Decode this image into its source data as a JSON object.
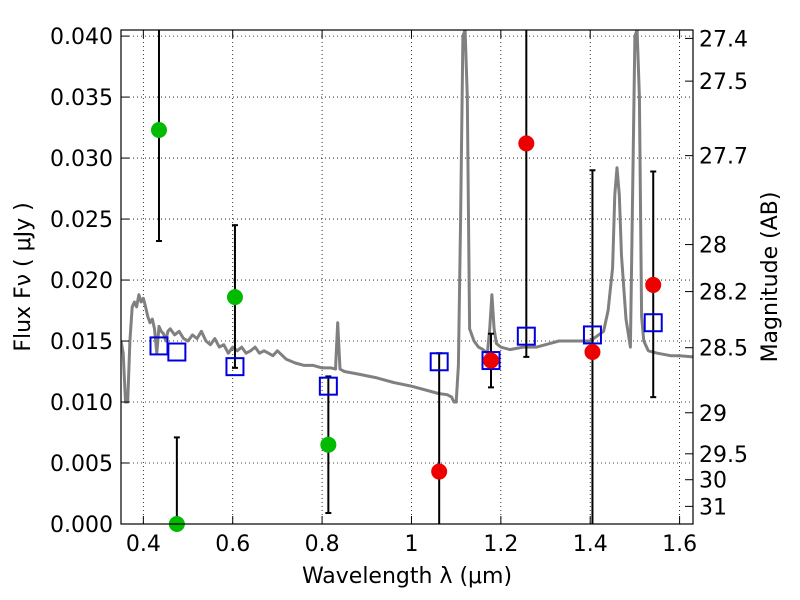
{
  "chart_data": {
    "type": "scatter",
    "xlabel": "Wavelength  λ (μm)",
    "ylabel": "Flux  Fν  ( μJy )",
    "y2label": "Magnitude (AB)",
    "xlim": [
      0.35,
      1.63
    ],
    "ylim": [
      0.0,
      0.0405
    ],
    "grid": true,
    "x_ticks": [
      {
        "value": 0.4,
        "label": "0.4"
      },
      {
        "value": 0.6,
        "label": "0.6"
      },
      {
        "value": 0.8,
        "label": "0.8"
      },
      {
        "value": 1.0,
        "label": "1"
      },
      {
        "value": 1.2,
        "label": "1.2"
      },
      {
        "value": 1.4,
        "label": "1.4"
      },
      {
        "value": 1.6,
        "label": "1.6"
      }
    ],
    "y_ticks": [
      {
        "value": 0.0,
        "label": "0.000"
      },
      {
        "value": 0.005,
        "label": "0.005"
      },
      {
        "value": 0.01,
        "label": "0.010"
      },
      {
        "value": 0.015,
        "label": "0.015"
      },
      {
        "value": 0.02,
        "label": "0.020"
      },
      {
        "value": 0.025,
        "label": "0.025"
      },
      {
        "value": 0.03,
        "label": "0.030"
      },
      {
        "value": 0.035,
        "label": "0.035"
      },
      {
        "value": 0.04,
        "label": "0.040"
      }
    ],
    "y2_ticks": [
      {
        "value": 27.4,
        "label": "27.4"
      },
      {
        "value": 27.5,
        "label": "27.5"
      },
      {
        "value": 27.7,
        "label": "27.7"
      },
      {
        "value": 28.0,
        "label": "28"
      },
      {
        "value": 28.2,
        "label": "28.2"
      },
      {
        "value": 28.5,
        "label": "28.5"
      },
      {
        "value": 29.0,
        "label": "29"
      },
      {
        "value": 29.5,
        "label": "29.5"
      },
      {
        "value": 30.0,
        "label": "30"
      },
      {
        "value": 31.0,
        "label": "31"
      }
    ],
    "observed_optical": {
      "color": "#00bb00",
      "points": [
        {
          "x": 0.435,
          "y": 0.0323,
          "lo": 0.0232,
          "hi": 0.0405
        },
        {
          "x": 0.475,
          "y": 0.0,
          "lo": 0.0,
          "hi": 0.0071
        },
        {
          "x": 0.605,
          "y": 0.0186,
          "lo": 0.0128,
          "hi": 0.0245
        },
        {
          "x": 0.814,
          "y": 0.0065,
          "lo": 0.0009,
          "hi": 0.0121
        }
      ]
    },
    "observed_nir": {
      "color": "#ee0000",
      "points": [
        {
          "x": 1.062,
          "y": 0.0043,
          "lo": 0.0,
          "hi": 0.014
        },
        {
          "x": 1.178,
          "y": 0.0134,
          "lo": 0.0112,
          "hi": 0.0156
        },
        {
          "x": 1.257,
          "y": 0.0312,
          "lo": 0.0137,
          "hi": 0.0405
        },
        {
          "x": 1.405,
          "y": 0.0141,
          "lo": 0.0,
          "hi": 0.029
        },
        {
          "x": 1.541,
          "y": 0.0196,
          "lo": 0.0104,
          "hi": 0.0289
        }
      ]
    },
    "model_photometry": {
      "color": "#0000dd",
      "points": [
        {
          "x": 0.435,
          "y": 0.0146
        },
        {
          "x": 0.475,
          "y": 0.0141
        },
        {
          "x": 0.605,
          "y": 0.0129
        },
        {
          "x": 0.814,
          "y": 0.0113
        },
        {
          "x": 1.062,
          "y": 0.0133
        },
        {
          "x": 1.178,
          "y": 0.0134
        },
        {
          "x": 1.257,
          "y": 0.0154
        },
        {
          "x": 1.405,
          "y": 0.0155
        },
        {
          "x": 1.541,
          "y": 0.0165
        }
      ]
    },
    "model_spectrum": {
      "color": "#808080",
      "x": [
        0.35,
        0.355,
        0.36,
        0.365,
        0.37,
        0.375,
        0.38,
        0.385,
        0.39,
        0.395,
        0.4,
        0.405,
        0.41,
        0.415,
        0.42,
        0.425,
        0.43,
        0.435,
        0.44,
        0.445,
        0.45,
        0.455,
        0.46,
        0.47,
        0.48,
        0.49,
        0.5,
        0.51,
        0.52,
        0.53,
        0.54,
        0.55,
        0.56,
        0.57,
        0.58,
        0.59,
        0.6,
        0.61,
        0.62,
        0.63,
        0.64,
        0.65,
        0.66,
        0.67,
        0.68,
        0.69,
        0.7,
        0.72,
        0.74,
        0.76,
        0.78,
        0.8,
        0.82,
        0.83,
        0.835,
        0.84,
        0.845,
        0.85,
        0.88,
        0.92,
        0.96,
        1.0,
        1.04,
        1.06,
        1.08,
        1.09,
        1.095,
        1.1,
        1.105,
        1.11,
        1.115,
        1.12,
        1.125,
        1.13,
        1.14,
        1.15,
        1.16,
        1.17,
        1.175,
        1.18,
        1.185,
        1.19,
        1.2,
        1.22,
        1.25,
        1.28,
        1.3,
        1.33,
        1.36,
        1.4,
        1.43,
        1.44,
        1.45,
        1.455,
        1.46,
        1.465,
        1.47,
        1.48,
        1.49,
        1.5,
        1.505,
        1.51,
        1.515,
        1.52,
        1.53,
        1.55,
        1.58,
        1.6,
        1.63
      ],
      "y": [
        0.015,
        0.014,
        0.01,
        0.01,
        0.015,
        0.0178,
        0.0182,
        0.0178,
        0.0188,
        0.0182,
        0.0185,
        0.0178,
        0.017,
        0.0165,
        0.0168,
        0.016,
        0.014,
        0.0162,
        0.0158,
        0.0156,
        0.015,
        0.0158,
        0.016,
        0.0155,
        0.0158,
        0.0152,
        0.015,
        0.0155,
        0.0152,
        0.0158,
        0.015,
        0.0147,
        0.0152,
        0.0145,
        0.0147,
        0.014,
        0.0145,
        0.0142,
        0.0145,
        0.014,
        0.0142,
        0.0145,
        0.014,
        0.0142,
        0.014,
        0.0138,
        0.0142,
        0.0135,
        0.0132,
        0.013,
        0.013,
        0.0128,
        0.0128,
        0.0127,
        0.0165,
        0.0127,
        0.0126,
        0.0125,
        0.0123,
        0.012,
        0.0116,
        0.0113,
        0.0109,
        0.0107,
        0.0106,
        0.0104,
        0.01,
        0.01,
        0.013,
        0.025,
        0.04,
        0.0405,
        0.035,
        0.016,
        0.015,
        0.0145,
        0.0143,
        0.014,
        0.016,
        0.0188,
        0.016,
        0.0148,
        0.0145,
        0.0143,
        0.0145,
        0.0145,
        0.0147,
        0.015,
        0.015,
        0.015,
        0.0158,
        0.0175,
        0.021,
        0.027,
        0.0292,
        0.027,
        0.022,
        0.0168,
        0.0145,
        0.04,
        0.0405,
        0.035,
        0.017,
        0.015,
        0.0142,
        0.014,
        0.0138,
        0.0138,
        0.0137
      ]
    }
  }
}
